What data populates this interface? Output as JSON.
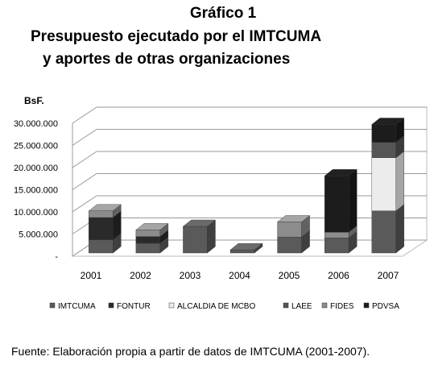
{
  "header": {
    "title": "Gráfico 1",
    "subtitle_line1": "Presupuesto ejecutado por el IMTCUMA",
    "subtitle_line2": "y aportes de otras organizaciones"
  },
  "source": "Fuente: Elaboración propia a partir de datos de IMTCUMA (2001-2007).",
  "chart_data": {
    "type": "bar",
    "stacked": true,
    "three_d": true,
    "ylabel": "BsF.",
    "ylim": [
      0,
      30000000
    ],
    "yticks": [
      0,
      5000000,
      10000000,
      15000000,
      20000000,
      25000000,
      30000000
    ],
    "ytick_labels": [
      "-",
      "5.000.000",
      "10.000.000",
      "15.000.000",
      "20.000.000",
      "25.000.000",
      "30.000.000"
    ],
    "categories": [
      "2001",
      "2002",
      "2003",
      "2004",
      "2005",
      "2006",
      "2007"
    ],
    "grid": true,
    "legend_position": "bottom",
    "series": [
      {
        "name": "IMTCUMA",
        "color": "#5a5a5a",
        "values": [
          3000000,
          2200000,
          6000000,
          700000,
          3600000,
          3400000,
          9500000
        ]
      },
      {
        "name": "FONTUR",
        "color": "#2a2a2a",
        "values": [
          5000000,
          1500000,
          0,
          0,
          0,
          0,
          0
        ]
      },
      {
        "name": "ALCALDIA DE MCBO",
        "color": "#ececec",
        "values": [
          0,
          0,
          0,
          0,
          0,
          0,
          12000000
        ]
      },
      {
        "name": "LAEE",
        "color": "#555555",
        "values": [
          0,
          0,
          0,
          0,
          0,
          0,
          3500000
        ]
      },
      {
        "name": "FIDES",
        "color": "#8c8c8c",
        "values": [
          1500000,
          1500000,
          0,
          0,
          3400000,
          1300000,
          0
        ]
      },
      {
        "name": "PDVSA",
        "color": "#1c1c1c",
        "values": [
          0,
          0,
          0,
          0,
          0,
          12700000,
          4000000
        ]
      }
    ]
  }
}
